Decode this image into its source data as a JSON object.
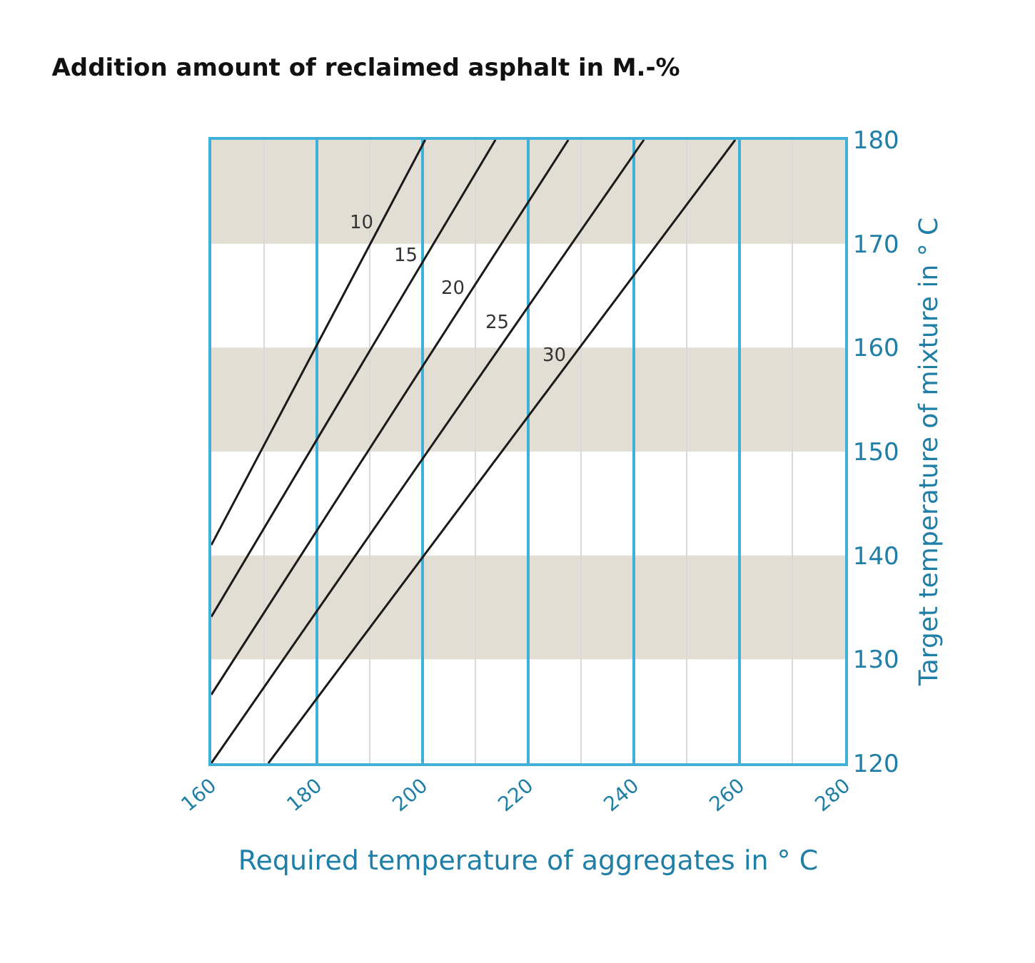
{
  "chart_data": {
    "type": "line",
    "title": "Addition amount of reclaimed asphalt in M.-%",
    "xlabel": "Required temperature of aggregates in ° C",
    "ylabel": "Target temperature of mixture in ° C",
    "series": [
      {
        "name": "10",
        "color": "#1a1a1a",
        "x": [
          160,
          200.5
        ],
        "values": [
          141,
          180
        ]
      },
      {
        "name": "15",
        "color": "#1a1a1a",
        "x": [
          160,
          213.8
        ],
        "values": [
          134.1,
          180
        ]
      },
      {
        "name": "20",
        "color": "#1a1a1a",
        "x": [
          160,
          227.6
        ],
        "values": [
          126.6,
          180
        ]
      },
      {
        "name": "25",
        "color": "#1a1a1a",
        "x": [
          160,
          241.9
        ],
        "values": [
          120,
          180
        ]
      },
      {
        "name": "30",
        "color": "#1a1a1a",
        "x": [
          170.8,
          259.2
        ],
        "values": [
          120,
          180
        ]
      }
    ],
    "xlim": [
      160,
      280
    ],
    "xticks": [
      160,
      180,
      200,
      220,
      240,
      260,
      280
    ],
    "ylim": [
      120,
      180
    ],
    "yticks": [
      120,
      130,
      140,
      150,
      160,
      170,
      180
    ],
    "bands": [
      {
        "axis": "y",
        "from": 130,
        "to": 140,
        "color": "#e3ded4"
      },
      {
        "axis": "y",
        "from": 150,
        "to": 160,
        "color": "#e3ded4"
      },
      {
        "axis": "y",
        "from": 170,
        "to": 180,
        "color": "#e3ded4"
      }
    ],
    "grid": "x",
    "legend": false,
    "marker": "none",
    "line_style": "solid"
  }
}
